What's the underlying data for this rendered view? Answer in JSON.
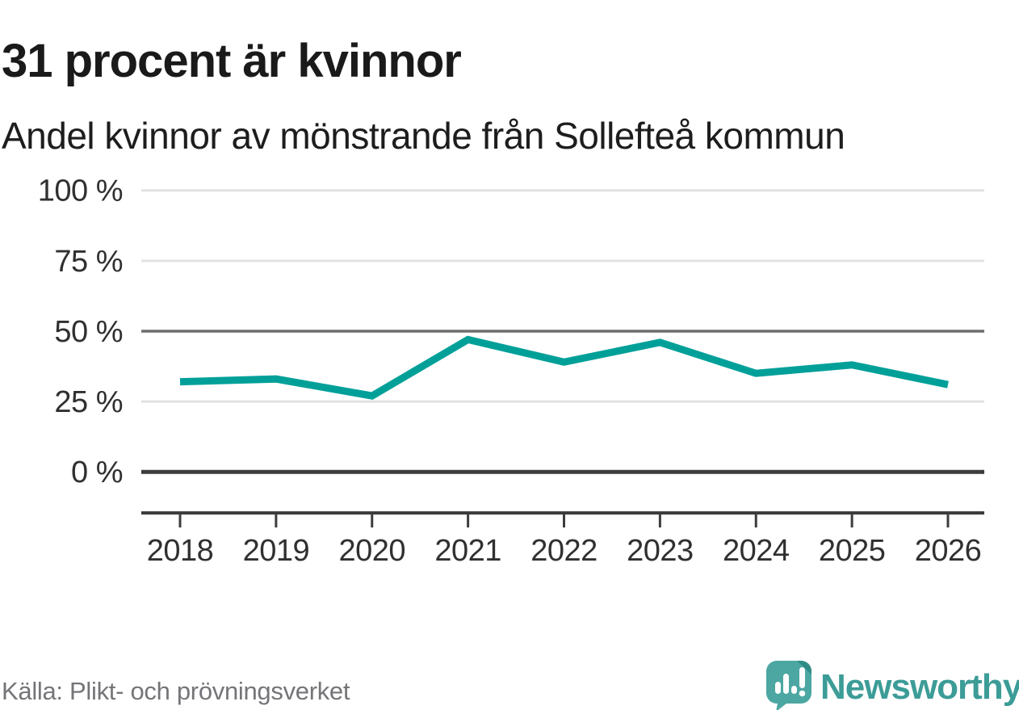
{
  "header": {
    "title": "31 procent är kvinnor",
    "subtitle": "Andel kvinnor av mönstrande från Sollefteå kommun"
  },
  "chart_data": {
    "type": "line",
    "title": "31 procent är kvinnor",
    "subtitle": "Andel kvinnor av mönstrande från Sollefteå kommun",
    "categories": [
      "2018",
      "2019",
      "2020",
      "2021",
      "2022",
      "2023",
      "2024",
      "2025",
      "2026"
    ],
    "series": [
      {
        "name": "Andel kvinnor av mönstrande",
        "values": [
          32,
          33,
          27,
          47,
          39,
          46,
          35,
          38,
          31
        ]
      }
    ],
    "unit": "%",
    "ylim": [
      0,
      100
    ],
    "yticks": [
      0,
      25,
      50,
      75,
      100
    ],
    "ytick_labels": [
      "0 %",
      "25 %",
      "50 %",
      "75 %",
      "100 %"
    ],
    "xlabel": "",
    "ylabel": "",
    "grid": "horizontal",
    "legend": "none",
    "emphasized_gridlines": [
      0,
      50
    ],
    "line_color": "#00a099"
  },
  "colors": {
    "line": "#00a099",
    "grid_light": "#e2e2e2",
    "grid_mid": "#6e6e6e",
    "grid_dark": "#3d3d3d",
    "axis_text": "#303030",
    "title_text": "#1a1a1a",
    "source_text": "#757579",
    "brand_teal": "#3c9c97",
    "brand_icon_teal": "#4ca7a2",
    "brand_icon_fold": "#318c87"
  },
  "footer": {
    "source": "Källa: Plikt- och prövningsverket",
    "brand": "Newsworthy"
  }
}
